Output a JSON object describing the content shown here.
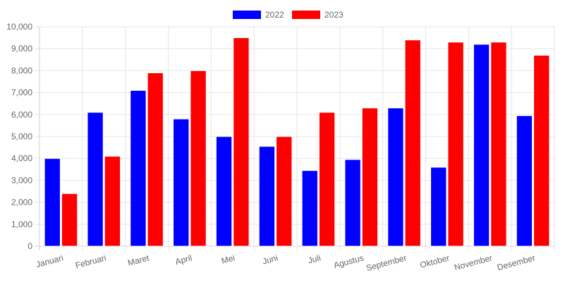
{
  "chart_data": {
    "type": "bar",
    "title": "",
    "xlabel": "",
    "ylabel": "",
    "categories": [
      "Januari",
      "Februari",
      "Maret",
      "April",
      "Mei",
      "Juni",
      "Juli",
      "Agustus",
      "September",
      "Oktober",
      "November",
      "Desember"
    ],
    "series": [
      {
        "name": "2022",
        "color": "#0000ff",
        "values": [
          4000,
          6100,
          7100,
          5800,
          5000,
          4550,
          3450,
          3950,
          6300,
          3600,
          9200,
          5950
        ]
      },
      {
        "name": "2023",
        "color": "#ff0000",
        "values": [
          2400,
          4100,
          7900,
          8000,
          9500,
          5000,
          6100,
          6300,
          9400,
          9300,
          9300,
          8700
        ]
      }
    ],
    "ylim": [
      0,
      10000
    ],
    "yticks": [
      "0",
      "1,000",
      "2,000",
      "3,000",
      "4,000",
      "5,000",
      "6,000",
      "7,000",
      "8,000",
      "9,000",
      "10,000"
    ],
    "grid": true,
    "legend_position": "top-center"
  }
}
